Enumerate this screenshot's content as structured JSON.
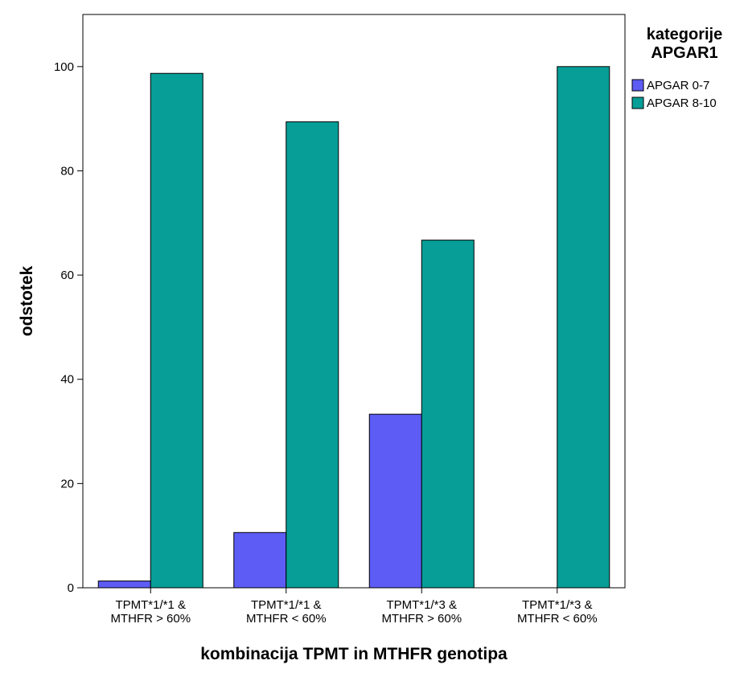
{
  "chart_data": {
    "type": "bar",
    "title": "",
    "xlabel": "kombinacija TPMT in MTHFR genotipa",
    "ylabel": "odstotek",
    "ylim": [
      0,
      110
    ],
    "yticks": [
      0,
      20,
      40,
      60,
      80,
      100
    ],
    "categories": [
      [
        "TPMT*1/*1 &",
        "MTHFR > 60%"
      ],
      [
        "TPMT*1/*1 &",
        "MTHFR < 60%"
      ],
      [
        "TPMT*1/*3 &",
        "MTHFR > 60%"
      ],
      [
        "TPMT*1/*3 &",
        "MTHFR < 60%"
      ]
    ],
    "series": [
      {
        "name": "APGAR 0-7",
        "color": "#5d5cf5",
        "values": [
          1.3,
          10.6,
          33.3,
          0
        ]
      },
      {
        "name": "APGAR 8-10",
        "color": "#069e97",
        "values": [
          98.7,
          89.4,
          66.7,
          100
        ]
      }
    ],
    "legend": {
      "title_lines": [
        "kategorije",
        "APGAR1"
      ],
      "placement": "right"
    },
    "grid": false
  }
}
